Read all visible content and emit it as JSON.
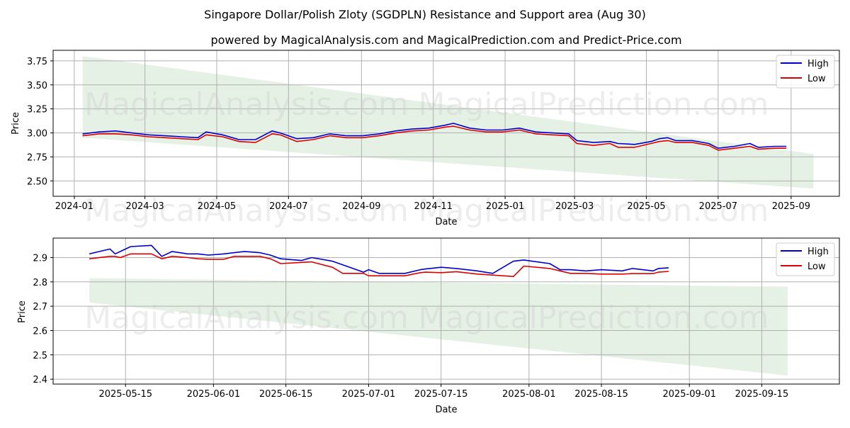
{
  "header": {
    "title": "Singapore Dollar/Polish Zloty (SGDPLN) Resistance and Support area (Aug 30)",
    "subtitle": "powered by MagicalAnalysis.com and MagicalPrediction.com and Predict-Price.com"
  },
  "watermarks": [
    "MagicalAnalysis.com",
    "MagicalPrediction.com"
  ],
  "colors": {
    "high": "#0000cc",
    "low": "#dd0000",
    "band": "#e3f0e3",
    "grid": "#b0b0b0"
  },
  "chart_data": [
    {
      "type": "line",
      "xlabel": "Date",
      "ylabel": "Price",
      "grid": true,
      "legend_position": "top-right",
      "xlim": [
        "2023-12-14",
        "2025-10-12"
      ],
      "ylim": [
        2.34,
        3.86
      ],
      "x_ticks": [
        "2024-01-01",
        "2024-03-01",
        "2024-05-01",
        "2024-07-01",
        "2024-09-01",
        "2024-11-01",
        "2025-01-01",
        "2025-03-01",
        "2025-05-01",
        "2025-07-01",
        "2025-09-01"
      ],
      "x_tick_labels": [
        "2024-01",
        "2024-03",
        "2024-05",
        "2024-07",
        "2024-09",
        "2024-11",
        "2025-01",
        "2025-03",
        "2025-05",
        "2025-07",
        "2025-09"
      ],
      "y_ticks": [
        2.5,
        2.75,
        3.0,
        3.25,
        3.5,
        3.75
      ],
      "y_tick_labels": [
        "2.50",
        "2.75",
        "3.00",
        "3.25",
        "3.50",
        "3.75"
      ],
      "band": {
        "x": [
          "2024-01-08",
          "2025-09-20"
        ],
        "upper": [
          3.8,
          2.78
        ],
        "lower": [
          2.95,
          2.42
        ]
      },
      "series": [
        {
          "name": "High",
          "x": [
            "2024-01-08",
            "2024-01-22",
            "2024-02-05",
            "2024-02-19",
            "2024-03-04",
            "2024-03-18",
            "2024-04-01",
            "2024-04-15",
            "2024-04-22",
            "2024-05-06",
            "2024-05-20",
            "2024-06-03",
            "2024-06-17",
            "2024-06-24",
            "2024-07-08",
            "2024-07-22",
            "2024-08-05",
            "2024-08-19",
            "2024-09-02",
            "2024-09-16",
            "2024-09-30",
            "2024-10-14",
            "2024-10-28",
            "2024-11-11",
            "2024-11-18",
            "2024-12-02",
            "2024-12-16",
            "2024-12-30",
            "2025-01-13",
            "2025-01-27",
            "2025-02-10",
            "2025-02-24",
            "2025-03-03",
            "2025-03-17",
            "2025-03-31",
            "2025-04-07",
            "2025-04-21",
            "2025-05-05",
            "2025-05-12",
            "2025-05-19",
            "2025-05-26",
            "2025-06-09",
            "2025-06-23",
            "2025-07-01",
            "2025-07-15",
            "2025-07-28",
            "2025-08-04",
            "2025-08-18",
            "2025-08-28"
          ],
          "y": [
            2.99,
            3.01,
            3.02,
            3.0,
            2.98,
            2.97,
            2.96,
            2.95,
            3.01,
            2.98,
            2.93,
            2.93,
            3.02,
            3.0,
            2.94,
            2.95,
            2.99,
            2.97,
            2.97,
            2.99,
            3.02,
            3.04,
            3.05,
            3.08,
            3.1,
            3.05,
            3.03,
            3.03,
            3.05,
            3.01,
            3.0,
            2.99,
            2.92,
            2.9,
            2.91,
            2.89,
            2.88,
            2.91,
            2.94,
            2.95,
            2.92,
            2.92,
            2.89,
            2.84,
            2.86,
            2.89,
            2.85,
            2.86,
            2.86
          ]
        },
        {
          "name": "Low",
          "x": [
            "2024-01-08",
            "2024-01-22",
            "2024-02-05",
            "2024-02-19",
            "2024-03-04",
            "2024-03-18",
            "2024-04-01",
            "2024-04-15",
            "2024-04-22",
            "2024-05-06",
            "2024-05-20",
            "2024-06-03",
            "2024-06-17",
            "2024-06-24",
            "2024-07-08",
            "2024-07-22",
            "2024-08-05",
            "2024-08-19",
            "2024-09-02",
            "2024-09-16",
            "2024-09-30",
            "2024-10-14",
            "2024-10-28",
            "2024-11-11",
            "2024-11-18",
            "2024-12-02",
            "2024-12-16",
            "2024-12-30",
            "2025-01-13",
            "2025-01-27",
            "2025-02-10",
            "2025-02-24",
            "2025-03-03",
            "2025-03-17",
            "2025-03-31",
            "2025-04-07",
            "2025-04-21",
            "2025-05-05",
            "2025-05-12",
            "2025-05-19",
            "2025-05-26",
            "2025-06-09",
            "2025-06-23",
            "2025-07-01",
            "2025-07-15",
            "2025-07-28",
            "2025-08-04",
            "2025-08-18",
            "2025-08-28"
          ],
          "y": [
            2.97,
            2.99,
            2.99,
            2.98,
            2.96,
            2.95,
            2.94,
            2.93,
            2.98,
            2.96,
            2.91,
            2.9,
            2.99,
            2.98,
            2.91,
            2.93,
            2.97,
            2.95,
            2.95,
            2.97,
            3.0,
            3.02,
            3.03,
            3.06,
            3.07,
            3.03,
            3.01,
            3.01,
            3.03,
            2.99,
            2.98,
            2.97,
            2.89,
            2.87,
            2.89,
            2.85,
            2.85,
            2.89,
            2.91,
            2.92,
            2.9,
            2.9,
            2.87,
            2.82,
            2.84,
            2.86,
            2.83,
            2.84,
            2.84
          ]
        }
      ]
    },
    {
      "type": "line",
      "xlabel": "Date",
      "ylabel": "Price",
      "grid": true,
      "legend_position": "top-right",
      "xlim": [
        "2025-05-01",
        "2025-09-30"
      ],
      "ylim": [
        2.38,
        2.98
      ],
      "x_ticks": [
        "2025-05-15",
        "2025-06-01",
        "2025-06-15",
        "2025-07-01",
        "2025-07-15",
        "2025-08-01",
        "2025-08-15",
        "2025-09-01",
        "2025-09-15"
      ],
      "x_tick_labels": [
        "2025-05-15",
        "2025-06-01",
        "2025-06-15",
        "2025-07-01",
        "2025-07-15",
        "2025-08-01",
        "2025-08-15",
        "2025-09-01",
        "2025-09-15"
      ],
      "y_ticks": [
        2.4,
        2.5,
        2.6,
        2.7,
        2.8,
        2.9
      ],
      "y_tick_labels": [
        "2.4",
        "2.5",
        "2.6",
        "2.7",
        "2.8",
        "2.9"
      ],
      "band": {
        "x": [
          "2025-05-08",
          "2025-09-20"
        ],
        "upper": [
          2.815,
          2.78
        ],
        "lower": [
          2.715,
          2.415
        ]
      },
      "series": [
        {
          "name": "High",
          "x": [
            "2025-05-08",
            "2025-05-12",
            "2025-05-13",
            "2025-05-14",
            "2025-05-16",
            "2025-05-20",
            "2025-05-22",
            "2025-05-24",
            "2025-05-27",
            "2025-05-29",
            "2025-05-31",
            "2025-06-03",
            "2025-06-05",
            "2025-06-07",
            "2025-06-10",
            "2025-06-12",
            "2025-06-14",
            "2025-06-18",
            "2025-06-20",
            "2025-06-24",
            "2025-06-26",
            "2025-06-30",
            "2025-07-01",
            "2025-07-03",
            "2025-07-08",
            "2025-07-11",
            "2025-07-12",
            "2025-07-15",
            "2025-07-18",
            "2025-07-22",
            "2025-07-25",
            "2025-07-29",
            "2025-07-31",
            "2025-08-05",
            "2025-08-07",
            "2025-08-09",
            "2025-08-12",
            "2025-08-15",
            "2025-08-19",
            "2025-08-21",
            "2025-08-25",
            "2025-08-26",
            "2025-08-28"
          ],
          "y": [
            2.915,
            2.935,
            2.915,
            2.925,
            2.945,
            2.95,
            2.905,
            2.925,
            2.915,
            2.915,
            2.91,
            2.915,
            2.92,
            2.925,
            2.92,
            2.91,
            2.895,
            2.888,
            2.9,
            2.885,
            2.87,
            2.84,
            2.85,
            2.835,
            2.835,
            2.85,
            2.853,
            2.86,
            2.855,
            2.845,
            2.835,
            2.885,
            2.89,
            2.875,
            2.85,
            2.85,
            2.845,
            2.85,
            2.845,
            2.855,
            2.845,
            2.855,
            2.858
          ]
        },
        {
          "name": "Low",
          "x": [
            "2025-05-08",
            "2025-05-12",
            "2025-05-13",
            "2025-05-14",
            "2025-05-16",
            "2025-05-20",
            "2025-05-22",
            "2025-05-24",
            "2025-05-27",
            "2025-05-29",
            "2025-05-31",
            "2025-06-03",
            "2025-06-05",
            "2025-06-07",
            "2025-06-10",
            "2025-06-12",
            "2025-06-14",
            "2025-06-18",
            "2025-06-20",
            "2025-06-24",
            "2025-06-26",
            "2025-06-30",
            "2025-07-01",
            "2025-07-03",
            "2025-07-08",
            "2025-07-11",
            "2025-07-12",
            "2025-07-15",
            "2025-07-18",
            "2025-07-22",
            "2025-07-25",
            "2025-07-29",
            "2025-07-31",
            "2025-08-05",
            "2025-08-07",
            "2025-08-09",
            "2025-08-12",
            "2025-08-15",
            "2025-08-19",
            "2025-08-21",
            "2025-08-25",
            "2025-08-26",
            "2025-08-28"
          ],
          "y": [
            2.895,
            2.905,
            2.905,
            2.9,
            2.915,
            2.915,
            2.895,
            2.905,
            2.9,
            2.895,
            2.893,
            2.893,
            2.905,
            2.905,
            2.905,
            2.895,
            2.875,
            2.88,
            2.882,
            2.86,
            2.835,
            2.835,
            2.825,
            2.825,
            2.825,
            2.838,
            2.84,
            2.838,
            2.842,
            2.832,
            2.828,
            2.822,
            2.865,
            2.855,
            2.845,
            2.835,
            2.835,
            2.832,
            2.832,
            2.834,
            2.834,
            2.84,
            2.843
          ]
        }
      ]
    }
  ]
}
